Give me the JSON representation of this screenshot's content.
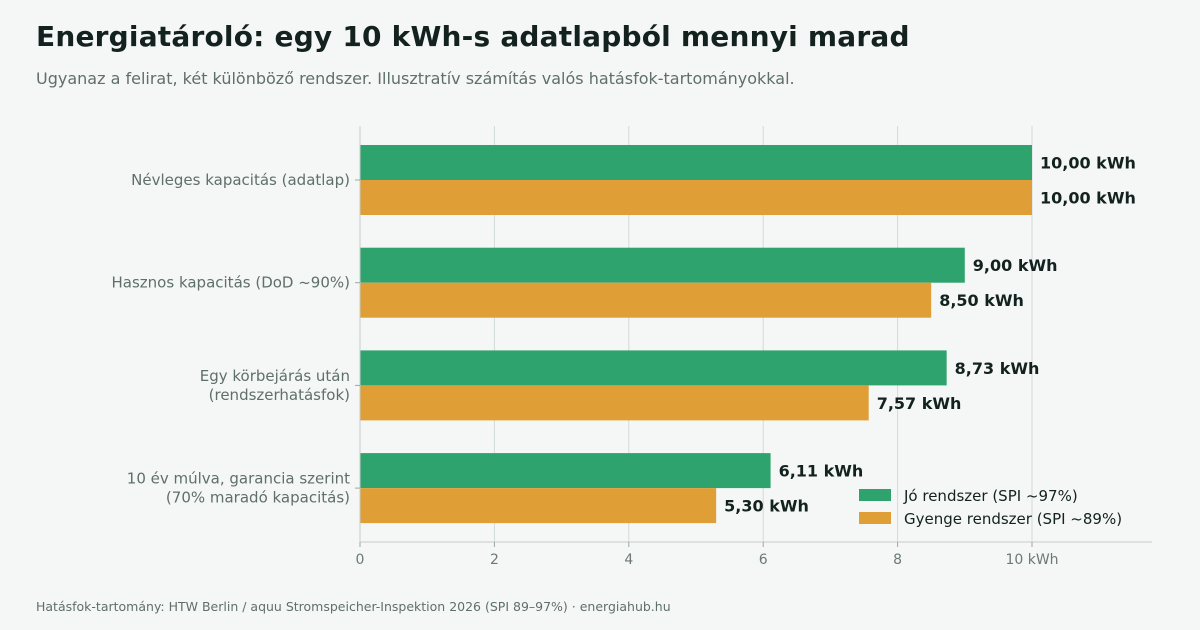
{
  "header": {
    "title": "Energiatároló: egy 10 kWh-s adatlapból mennyi marad",
    "subtitle": "Ugyanaz a felirat, két különböző rendszer. Illusztratív számítás valós hatásfok-tartományokkal."
  },
  "footer": {
    "text": "Hatásfok-tartomány: HTW Berlin / aquu Stromspeicher-Inspektion 2026 (SPI 89–97%)  ·  energiahub.hu"
  },
  "chart_data": {
    "type": "bar",
    "orientation": "horizontal",
    "categories": [
      [
        "Névleges kapacitás (adatlap)"
      ],
      [
        "Hasznos kapacitás (DoD ~90%)"
      ],
      [
        "Egy körbejárás után",
        "(rendszerhatásfok)"
      ],
      [
        "10 év múlva, garancia szerint",
        "(70% maradó kapacitás)"
      ]
    ],
    "series": [
      {
        "name": "Jó rendszer (SPI ~97%)",
        "color": "#2fa36d",
        "values": [
          10.0,
          9.0,
          8.73,
          6.11
        ],
        "labels": [
          "10,00 kWh",
          "9,00 kWh",
          "8,73 kWh",
          "6,11 kWh"
        ]
      },
      {
        "name": "Gyenge rendszer (SPI ~89%)",
        "color": "#e09f36",
        "values": [
          10.0,
          8.5,
          7.57,
          5.3
        ],
        "labels": [
          "10,00 kWh",
          "8,50 kWh",
          "7,57 kWh",
          "5,30 kWh"
        ]
      }
    ],
    "xticks": [
      0,
      2,
      4,
      6,
      8,
      10
    ],
    "xtick_labels": [
      "0",
      "2",
      "4",
      "6",
      "8",
      "10 kWh"
    ],
    "xlim": [
      0,
      11.8
    ],
    "grid": true,
    "legend_position": "bottom-right"
  }
}
